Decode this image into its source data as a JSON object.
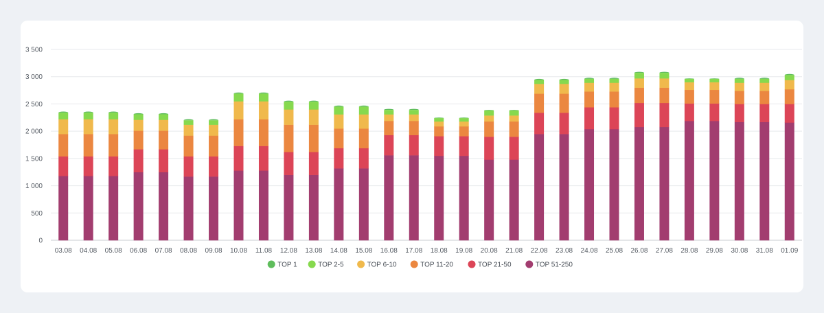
{
  "chart_data": {
    "type": "bar",
    "stacked": true,
    "categories": [
      "03.08",
      "04.08",
      "05.08",
      "06.08",
      "07.08",
      "08.08",
      "09.08",
      "10.08",
      "11.08",
      "12.08",
      "13.08",
      "14.08",
      "15.08",
      "16.08",
      "17.08",
      "18.08",
      "19.08",
      "20.08",
      "21.08",
      "22.08",
      "23.08",
      "24.08",
      "25.08",
      "26.08",
      "27.08",
      "28.08",
      "29.08",
      "30.08",
      "31.08",
      "01.09"
    ],
    "ylim": [
      0,
      3500
    ],
    "yticks": [
      0,
      500,
      1000,
      1500,
      2000,
      2500,
      3000,
      3500
    ],
    "ytick_labels": [
      "0",
      "500",
      "1 000",
      "1 500",
      "2 000",
      "2 500",
      "3 000",
      "3 500"
    ],
    "grid": true,
    "legend_position": "bottom",
    "series": [
      {
        "name": "TOP 51-250",
        "color": "#a23d6f",
        "values": [
          1180,
          1180,
          1180,
          1250,
          1250,
          1170,
          1170,
          1280,
          1280,
          1200,
          1200,
          1320,
          1320,
          1560,
          1560,
          1550,
          1550,
          1480,
          1480,
          1950,
          1950,
          2040,
          2040,
          2080,
          2080,
          2190,
          2190,
          2170,
          2170,
          2160
        ]
      },
      {
        "name": "TOP 21-50",
        "color": "#dc4557",
        "values": [
          360,
          360,
          360,
          420,
          420,
          370,
          370,
          450,
          450,
          420,
          420,
          370,
          370,
          370,
          370,
          360,
          360,
          420,
          420,
          390,
          390,
          400,
          400,
          440,
          440,
          320,
          320,
          330,
          330,
          340
        ]
      },
      {
        "name": "TOP 11-20",
        "color": "#eb8740",
        "values": [
          410,
          410,
          410,
          340,
          340,
          380,
          380,
          490,
          490,
          500,
          500,
          360,
          360,
          260,
          260,
          180,
          180,
          280,
          280,
          350,
          350,
          290,
          290,
          280,
          280,
          250,
          250,
          240,
          240,
          270
        ]
      },
      {
        "name": "TOP 6-10",
        "color": "#f0b94c",
        "values": [
          270,
          270,
          270,
          200,
          200,
          200,
          200,
          330,
          330,
          280,
          280,
          260,
          260,
          120,
          120,
          90,
          90,
          110,
          110,
          180,
          180,
          160,
          160,
          170,
          170,
          140,
          140,
          150,
          150,
          170
        ]
      },
      {
        "name": "TOP 2-5",
        "color": "#86d94e",
        "values": [
          120,
          120,
          120,
          100,
          100,
          80,
          80,
          140,
          140,
          140,
          140,
          140,
          140,
          80,
          80,
          60,
          60,
          90,
          90,
          70,
          70,
          70,
          70,
          100,
          100,
          60,
          60,
          70,
          70,
          90
        ]
      },
      {
        "name": "TOP 1",
        "color": "#5fbd5c",
        "values": [
          20,
          20,
          20,
          20,
          20,
          20,
          20,
          20,
          20,
          20,
          20,
          20,
          20,
          20,
          20,
          10,
          10,
          10,
          10,
          20,
          20,
          20,
          20,
          20,
          20,
          10,
          10,
          20,
          20,
          20
        ]
      }
    ]
  },
  "legend": [
    {
      "label": "TOP 1",
      "color": "#5fbd5c"
    },
    {
      "label": "TOP 2-5",
      "color": "#86d94e"
    },
    {
      "label": "TOP 6-10",
      "color": "#f0b94c"
    },
    {
      "label": "TOP 11-20",
      "color": "#eb8740"
    },
    {
      "label": "TOP 21-50",
      "color": "#dc4557"
    },
    {
      "label": "TOP 51-250",
      "color": "#a23d6f"
    }
  ]
}
